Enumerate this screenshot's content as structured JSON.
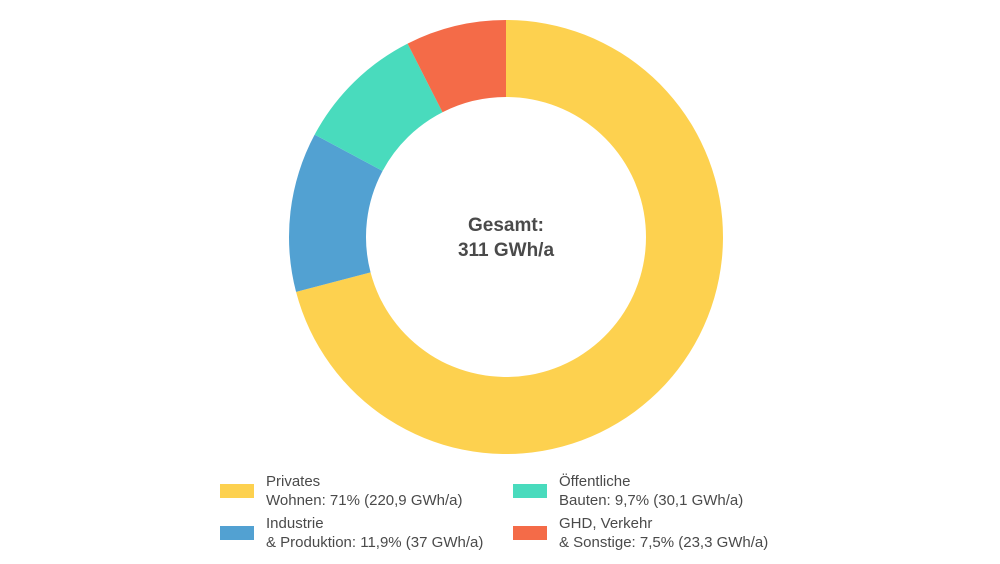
{
  "chart_data": {
    "type": "pie",
    "center_label": {
      "line1": "Gesamt:",
      "line2": "311 GWh/a"
    },
    "series": [
      {
        "name": "Privates Wohnen",
        "value": 71.0,
        "gwh": 220.9,
        "color": "#fdd14f",
        "legend_line1": "Privates",
        "legend_line2": "Wohnen: 71% (220,9 GWh/a)"
      },
      {
        "name": "Industrie & Produktion",
        "value": 11.9,
        "gwh": 37,
        "color": "#52a1d2",
        "legend_line1": "Industrie",
        "legend_line2": "& Produktion: 11,9% (37 GWh/a)"
      },
      {
        "name": "Öffentliche Bauten",
        "value": 9.7,
        "gwh": 30.1,
        "color": "#49dbbd",
        "legend_line1": "Öffentliche",
        "legend_line2": "Bauten: 9,7% (30,1 GWh/a)"
      },
      {
        "name": "GHD, Verkehr & Sonstige",
        "value": 7.5,
        "gwh": 23.3,
        "color": "#f46b48",
        "legend_line1": "GHD, Verkehr",
        "legend_line2": "& Sonstige: 7,5% (23,3 GWh/a)"
      }
    ],
    "legend_placement": "bottom"
  }
}
